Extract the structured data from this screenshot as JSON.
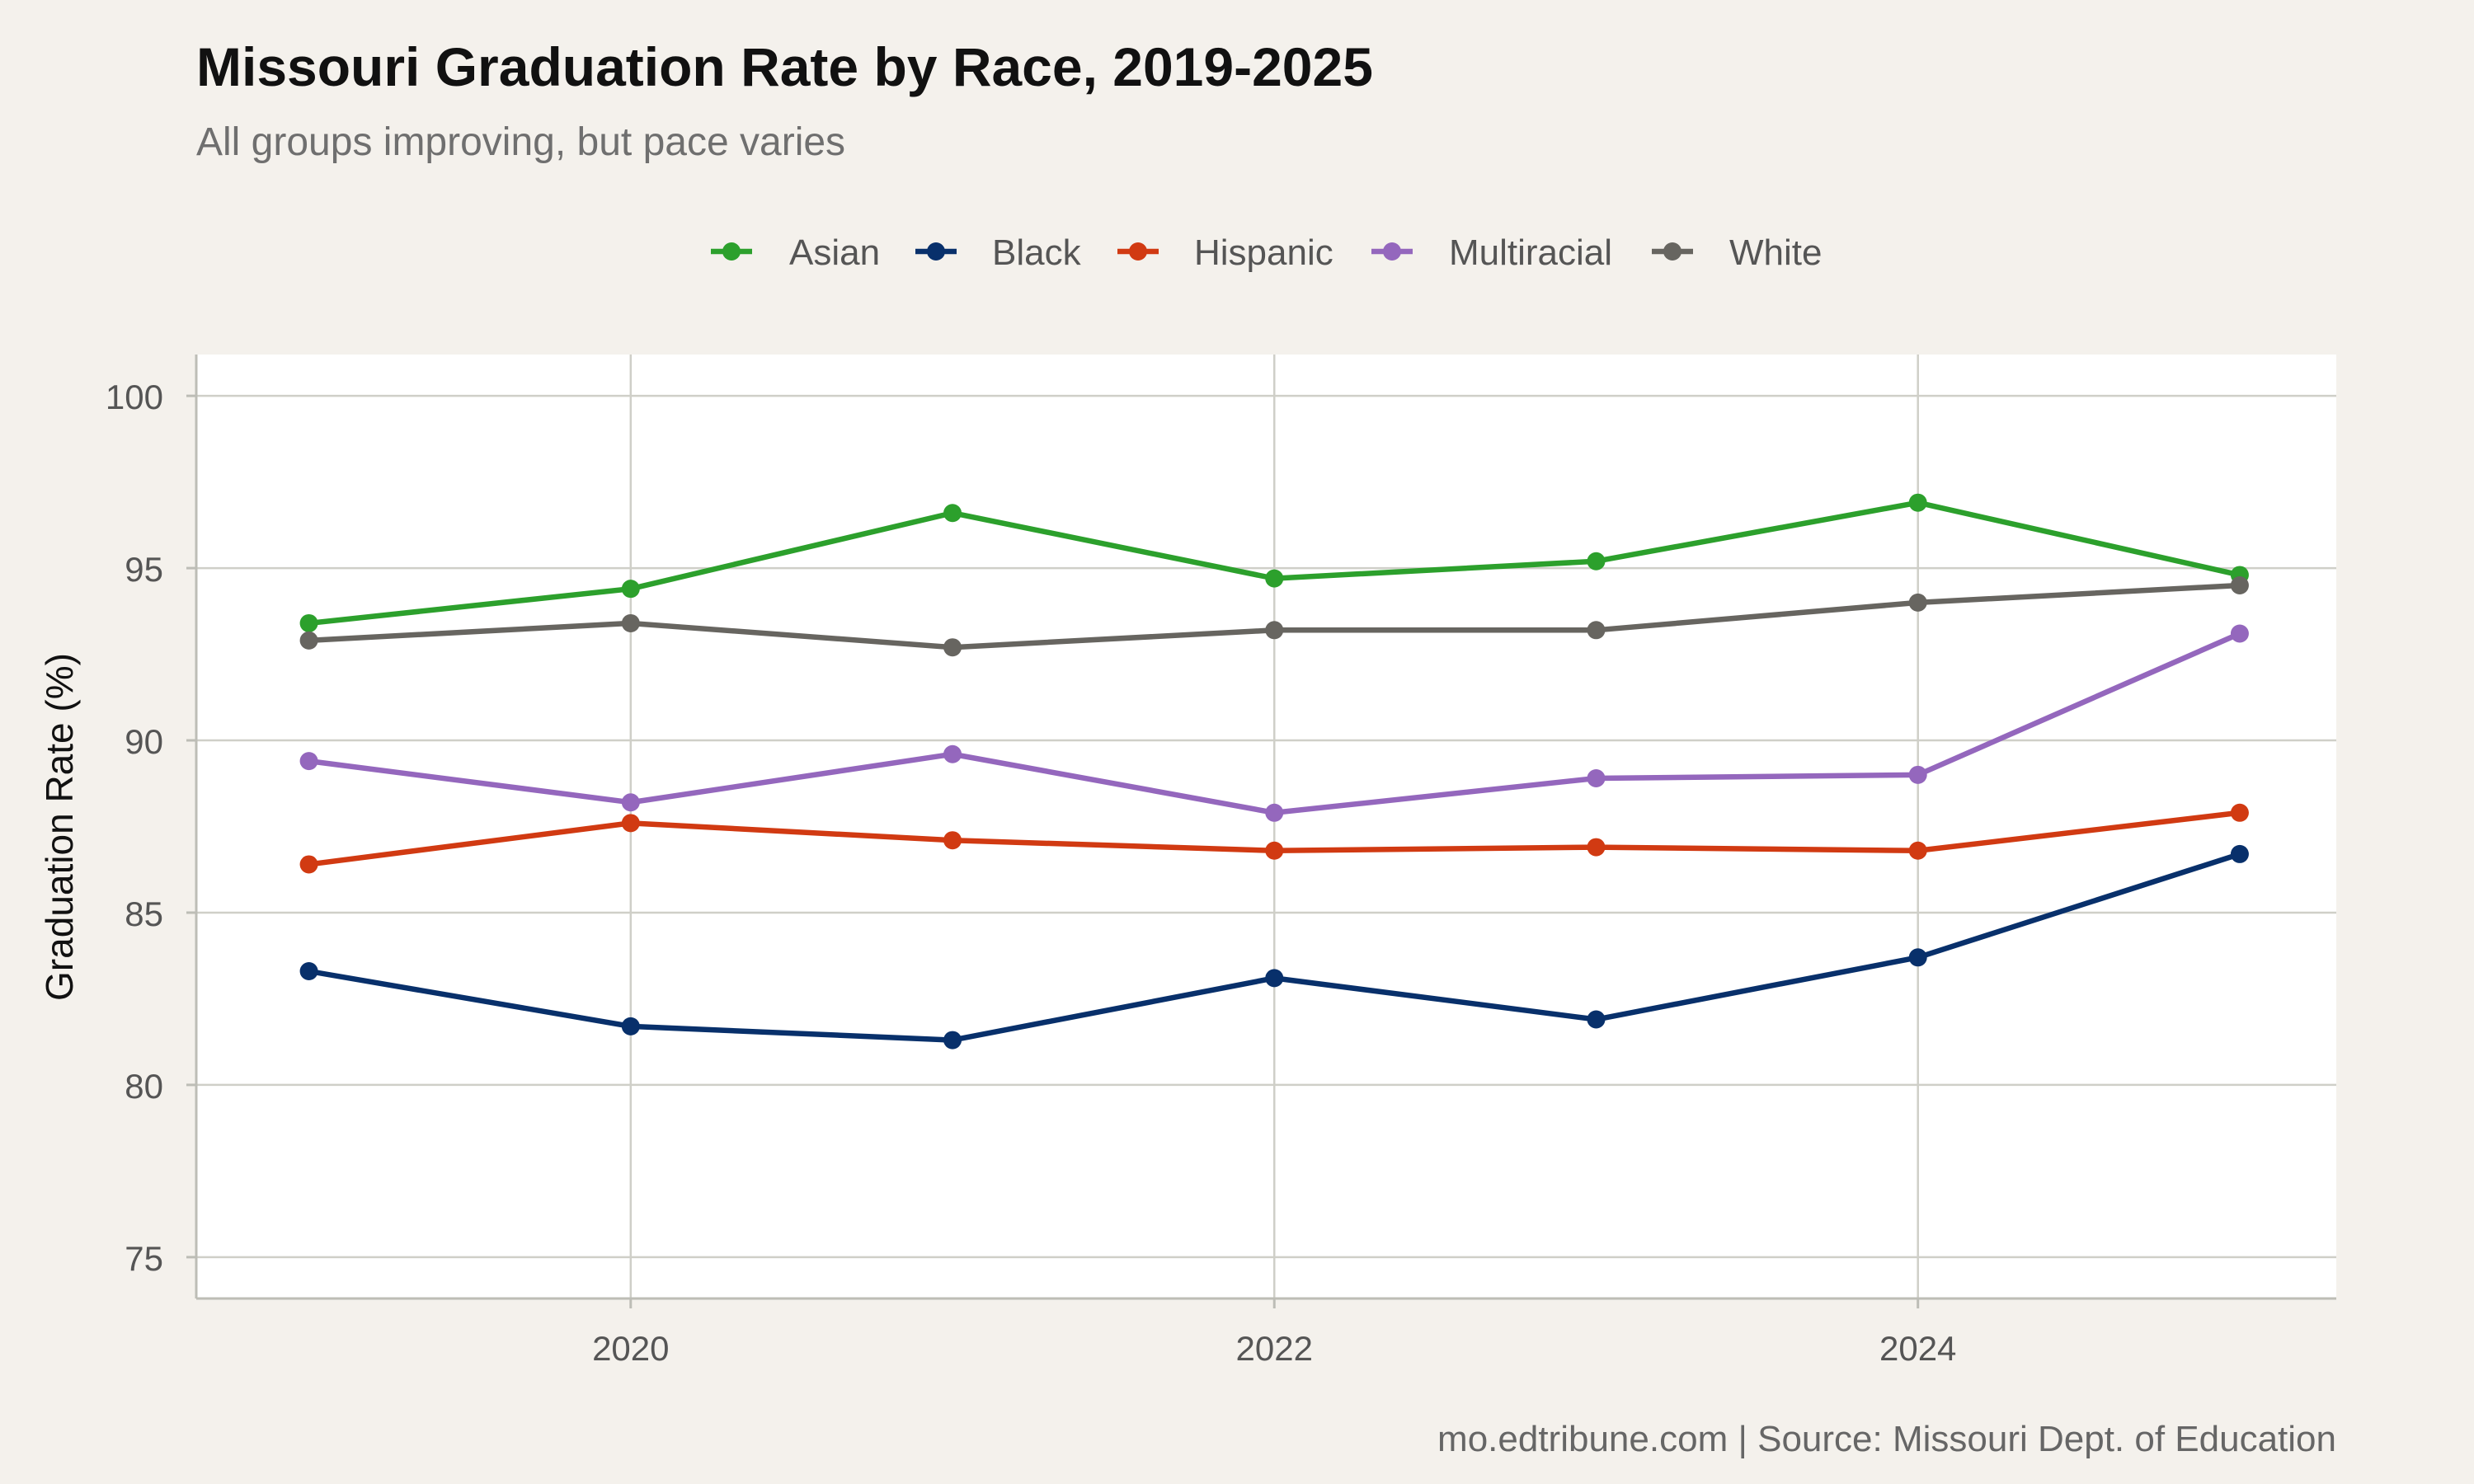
{
  "chart_data": {
    "type": "line",
    "title": "Missouri Graduation Rate by Race, 2019-2025",
    "subtitle": "All groups improving, but pace varies",
    "xlabel": "",
    "ylabel": "Graduation Rate (%)",
    "caption": "mo.edtribune.com | Source: Missouri Dept. of Education",
    "x": [
      2019,
      2020,
      2021,
      2022,
      2023,
      2024,
      2025
    ],
    "xlim": [
      2018.65,
      2025.3
    ],
    "ylim": [
      73.8,
      101.2
    ],
    "x_ticks": [
      2020,
      2022,
      2024
    ],
    "x_tick_labels": [
      "2020",
      "2022",
      "2024"
    ],
    "y_ticks": [
      75,
      80,
      85,
      90,
      95,
      100
    ],
    "y_tick_labels": [
      "75",
      "80",
      "85",
      "90",
      "95",
      "100"
    ],
    "grid": true,
    "legend_position": "top",
    "series": [
      {
        "name": "Asian",
        "color": "#2ca02c",
        "values": [
          93.4,
          94.4,
          96.6,
          94.7,
          95.2,
          96.9,
          94.8
        ]
      },
      {
        "name": "Black",
        "color": "#08306b",
        "values": [
          83.3,
          81.7,
          81.3,
          83.1,
          81.9,
          83.7,
          86.7
        ]
      },
      {
        "name": "Hispanic",
        "color": "#d13a12",
        "values": [
          86.4,
          87.6,
          87.1,
          86.8,
          86.9,
          86.8,
          87.9
        ]
      },
      {
        "name": "Multiracial",
        "color": "#9467bd",
        "values": [
          89.4,
          88.2,
          89.6,
          87.9,
          88.9,
          89.0,
          93.1
        ]
      },
      {
        "name": "White",
        "color": "#676560",
        "values": [
          92.9,
          93.4,
          92.7,
          93.2,
          93.2,
          94.0,
          94.5
        ]
      }
    ]
  }
}
